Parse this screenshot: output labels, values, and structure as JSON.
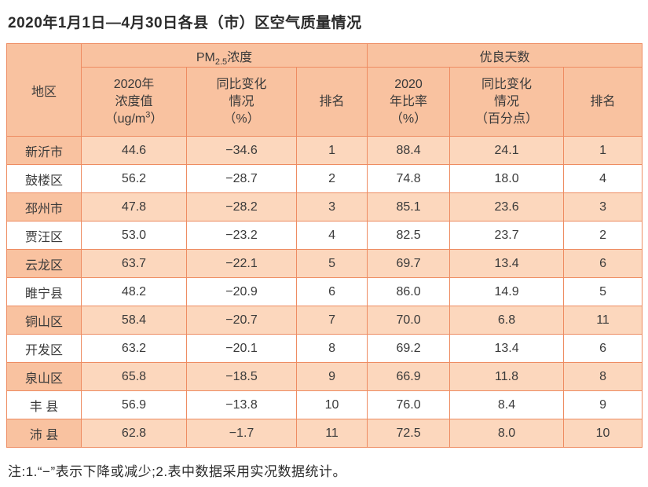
{
  "title": "2020年1月1日—4月30日各县（市）区空气质量情况",
  "note": "注:1.“−”表示下降或减少;2.表中数据采用实况数据统计。",
  "colors": {
    "border": "#ee8c62",
    "header_bg": "#f9c2a0",
    "alt_row_bg": "#fcd7bd",
    "text": "#3a3a3a"
  },
  "table": {
    "corner_header": "地区",
    "groups": {
      "pm": {
        "prefix": "PM",
        "sub": "2.5",
        "suffix": "浓度"
      },
      "good_days": "优良天数"
    },
    "columns": {
      "pm_value": {
        "line1": "2020年",
        "line2": "浓度值",
        "unit_pre": "（ug/m",
        "unit_sup": "3",
        "unit_post": "）"
      },
      "pm_change": {
        "line1": "同比变化",
        "line2": "情况",
        "line3": "（%）"
      },
      "pm_rank": "排名",
      "gd_ratio": {
        "line1": "2020",
        "line2": "年比率",
        "line3": "（%）"
      },
      "gd_change": {
        "line1": "同比变化",
        "line2": "情况",
        "line3": "（百分点）"
      },
      "gd_rank": "排名"
    },
    "rows": [
      {
        "region": "新沂市",
        "pm_value": "44.6",
        "pm_change": "−34.6",
        "pm_rank": "1",
        "gd_ratio": "88.4",
        "gd_change": "24.1",
        "gd_rank": "1"
      },
      {
        "region": "鼓楼区",
        "pm_value": "56.2",
        "pm_change": "−28.7",
        "pm_rank": "2",
        "gd_ratio": "74.8",
        "gd_change": "18.0",
        "gd_rank": "4"
      },
      {
        "region": "邳州市",
        "pm_value": "47.8",
        "pm_change": "−28.2",
        "pm_rank": "3",
        "gd_ratio": "85.1",
        "gd_change": "23.6",
        "gd_rank": "3"
      },
      {
        "region": "贾汪区",
        "pm_value": "53.0",
        "pm_change": "−23.2",
        "pm_rank": "4",
        "gd_ratio": "82.5",
        "gd_change": "23.7",
        "gd_rank": "2"
      },
      {
        "region": "云龙区",
        "pm_value": "63.7",
        "pm_change": "−22.1",
        "pm_rank": "5",
        "gd_ratio": "69.7",
        "gd_change": "13.4",
        "gd_rank": "6"
      },
      {
        "region": "睢宁县",
        "pm_value": "48.2",
        "pm_change": "−20.9",
        "pm_rank": "6",
        "gd_ratio": "86.0",
        "gd_change": "14.9",
        "gd_rank": "5"
      },
      {
        "region": "铜山区",
        "pm_value": "58.4",
        "pm_change": "−20.7",
        "pm_rank": "7",
        "gd_ratio": "70.0",
        "gd_change": "6.8",
        "gd_rank": "11"
      },
      {
        "region": "开发区",
        "pm_value": "63.2",
        "pm_change": "−20.1",
        "pm_rank": "8",
        "gd_ratio": "69.2",
        "gd_change": "13.4",
        "gd_rank": "6"
      },
      {
        "region": "泉山区",
        "pm_value": "65.8",
        "pm_change": "−18.5",
        "pm_rank": "9",
        "gd_ratio": "66.9",
        "gd_change": "11.8",
        "gd_rank": "8"
      },
      {
        "region": "丰 县",
        "pm_value": "56.9",
        "pm_change": "−13.8",
        "pm_rank": "10",
        "gd_ratio": "76.0",
        "gd_change": "8.4",
        "gd_rank": "9"
      },
      {
        "region": "沛 县",
        "pm_value": "62.8",
        "pm_change": "−1.7",
        "pm_rank": "11",
        "gd_ratio": "72.5",
        "gd_change": "8.0",
        "gd_rank": "10"
      }
    ]
  }
}
